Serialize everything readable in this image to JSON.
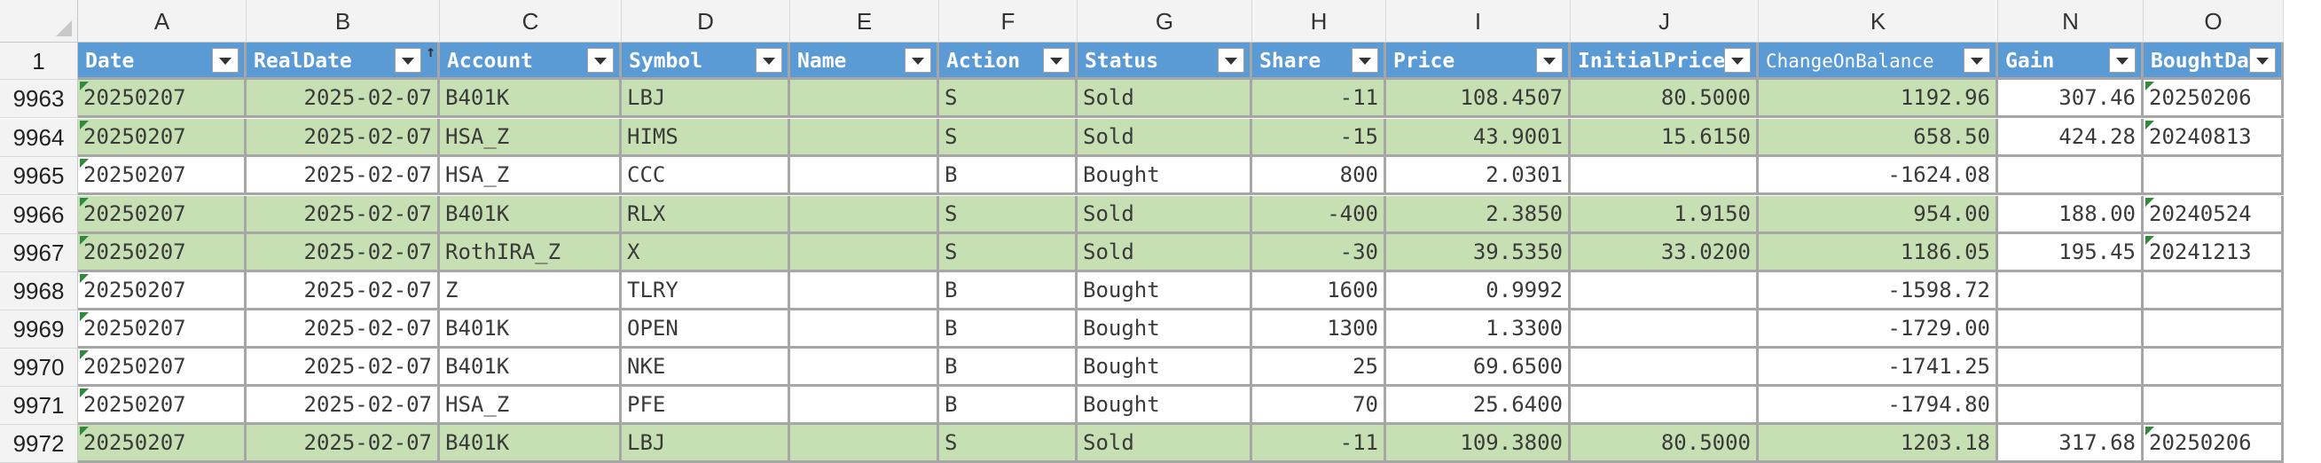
{
  "spreadsheet": {
    "column_letters": [
      "A",
      "B",
      "C",
      "D",
      "E",
      "F",
      "G",
      "H",
      "I",
      "J",
      "K",
      "N",
      "O"
    ],
    "header_row_number": "1",
    "field_headers": [
      "Date",
      "RealDate",
      "Account",
      "Symbol",
      "Name",
      "Action",
      "Status",
      "Share",
      "Price",
      "InitialPrice",
      "ChangeOnBalance",
      "Gain",
      "BoughtDate"
    ],
    "sorted_column": "RealDate",
    "rows": [
      {
        "num": "9963",
        "highlight": true,
        "cells": [
          "20250207",
          "2025-02-07",
          "B401K",
          "LBJ",
          "",
          "S",
          "Sold",
          "-11",
          "108.4507",
          "80.5000",
          "1192.96",
          "307.46",
          "20250206"
        ]
      },
      {
        "num": "9964",
        "highlight": true,
        "cells": [
          "20250207",
          "2025-02-07",
          "HSA_Z",
          "HIMS",
          "",
          "S",
          "Sold",
          "-15",
          "43.9001",
          "15.6150",
          "658.50",
          "424.28",
          "20240813"
        ]
      },
      {
        "num": "9965",
        "highlight": false,
        "cells": [
          "20250207",
          "2025-02-07",
          "HSA_Z",
          "CCC",
          "",
          "B",
          "Bought",
          "800",
          "2.0301",
          "",
          "-1624.08",
          "",
          ""
        ]
      },
      {
        "num": "9966",
        "highlight": true,
        "cells": [
          "20250207",
          "2025-02-07",
          "B401K",
          "RLX",
          "",
          "S",
          "Sold",
          "-400",
          "2.3850",
          "1.9150",
          "954.00",
          "188.00",
          "20240524"
        ]
      },
      {
        "num": "9967",
        "highlight": true,
        "cells": [
          "20250207",
          "2025-02-07",
          "RothIRA_Z",
          "X",
          "",
          "S",
          "Sold",
          "-30",
          "39.5350",
          "33.0200",
          "1186.05",
          "195.45",
          "20241213"
        ]
      },
      {
        "num": "9968",
        "highlight": false,
        "cells": [
          "20250207",
          "2025-02-07",
          "Z",
          "TLRY",
          "",
          "B",
          "Bought",
          "1600",
          "0.9992",
          "",
          "-1598.72",
          "",
          ""
        ]
      },
      {
        "num": "9969",
        "highlight": false,
        "cells": [
          "20250207",
          "2025-02-07",
          "B401K",
          "OPEN",
          "",
          "B",
          "Bought",
          "1300",
          "1.3300",
          "",
          "-1729.00",
          "",
          ""
        ]
      },
      {
        "num": "9970",
        "highlight": false,
        "cells": [
          "20250207",
          "2025-02-07",
          "B401K",
          "NKE",
          "",
          "B",
          "Bought",
          "25",
          "69.6500",
          "",
          "-1741.25",
          "",
          ""
        ]
      },
      {
        "num": "9971",
        "highlight": false,
        "cells": [
          "20250207",
          "2025-02-07",
          "HSA_Z",
          "PFE",
          "",
          "B",
          "Bought",
          "70",
          "25.6400",
          "",
          "-1794.80",
          "",
          ""
        ]
      },
      {
        "num": "9972",
        "highlight": true,
        "cells": [
          "20250207",
          "2025-02-07",
          "B401K",
          "LBJ",
          "",
          "S",
          "Sold",
          "-11",
          "109.3800",
          "80.5000",
          "1203.18",
          "317.68",
          "20250206"
        ]
      }
    ]
  },
  "colors": {
    "header_fill": "#5b9bd5",
    "sold_row_fill": "#c6e0b4",
    "plain_row_fill": "#ffffff",
    "error_indicator": "#2e8b3a"
  }
}
